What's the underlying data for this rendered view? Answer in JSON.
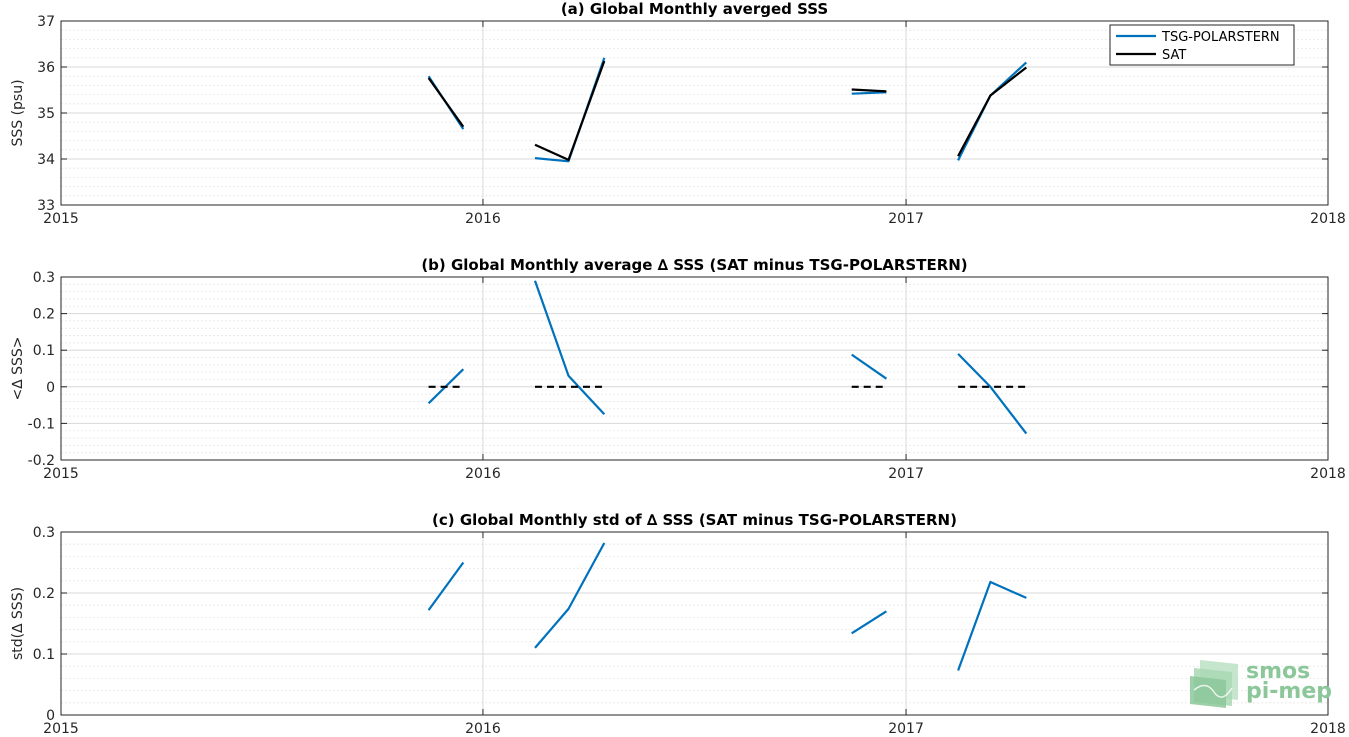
{
  "chart_data": [
    {
      "type": "line",
      "title": "(a) Global Monthly averged SSS",
      "xlabel": "",
      "ylabel": "SSS (psu)",
      "xlim": [
        "2015-01-01",
        "2018-01-01"
      ],
      "ylim": [
        33,
        37
      ],
      "xticks": [
        "2015",
        "2016",
        "2017",
        "2018"
      ],
      "yticks": [
        "33",
        "34",
        "35",
        "36",
        "37"
      ],
      "grid": true,
      "legend": "top-right",
      "series": [
        {
          "name": "TSG-POLARSTERN",
          "color": "#0072bd",
          "segments": [
            [
              [
                "2015-11-15",
                35.8
              ],
              [
                "2015-12-15",
                34.65
              ]
            ],
            [
              [
                "2016-02-15",
                34.02
              ],
              [
                "2016-03-15",
                33.95
              ],
              [
                "2016-04-15",
                36.2
              ]
            ],
            [
              [
                "2016-11-15",
                35.42
              ],
              [
                "2016-12-15",
                35.45
              ]
            ],
            [
              [
                "2017-02-15",
                33.97
              ],
              [
                "2017-03-15",
                35.38
              ],
              [
                "2017-04-15",
                36.1
              ]
            ]
          ]
        },
        {
          "name": "SAT",
          "color": "#000000",
          "segments": [
            [
              [
                "2015-11-15",
                35.76
              ],
              [
                "2015-12-15",
                34.7
              ]
            ],
            [
              [
                "2016-02-15",
                34.31
              ],
              [
                "2016-03-15",
                33.98
              ],
              [
                "2016-04-15",
                36.13
              ]
            ],
            [
              [
                "2016-11-15",
                35.51
              ],
              [
                "2016-12-15",
                35.47
              ]
            ],
            [
              [
                "2017-02-15",
                34.06
              ],
              [
                "2017-03-15",
                35.38
              ],
              [
                "2017-04-15",
                35.99
              ]
            ]
          ]
        }
      ]
    },
    {
      "type": "line",
      "title": "(b) Global Monthly average ∆ SSS (SAT minus TSG-POLARSTERN)",
      "xlabel": "",
      "ylabel": "<∆ SSS>",
      "xlim": [
        "2015-01-01",
        "2018-01-01"
      ],
      "ylim": [
        -0.2,
        0.3
      ],
      "xticks": [
        "2015",
        "2016",
        "2017",
        "2018"
      ],
      "yticks": [
        "-0.2",
        "-0.1",
        "0",
        "0.1",
        "0.2",
        "0.3"
      ],
      "grid": true,
      "series": [
        {
          "color": "#0072bd",
          "segments": [
            [
              [
                "2015-11-15",
                -0.045
              ],
              [
                "2015-12-15",
                0.048
              ]
            ],
            [
              [
                "2016-02-15",
                0.29
              ],
              [
                "2016-03-15",
                0.03
              ],
              [
                "2016-04-15",
                -0.075
              ]
            ],
            [
              [
                "2016-11-15",
                0.088
              ],
              [
                "2016-12-15",
                0.022
              ]
            ],
            [
              [
                "2017-02-15",
                0.09
              ],
              [
                "2017-03-15",
                0.0
              ],
              [
                "2017-04-15",
                -0.128
              ]
            ]
          ]
        },
        {
          "color": "#000000",
          "dashed": true,
          "segments": [
            [
              [
                "2015-11-15",
                0
              ],
              [
                "2015-12-15",
                0
              ]
            ],
            [
              [
                "2016-02-15",
                0
              ],
              [
                "2016-04-15",
                0
              ]
            ],
            [
              [
                "2016-11-15",
                0
              ],
              [
                "2016-12-15",
                0
              ]
            ],
            [
              [
                "2017-02-15",
                0
              ],
              [
                "2017-04-15",
                0
              ]
            ]
          ]
        }
      ]
    },
    {
      "type": "line",
      "title": "(c) Global Monthly std of ∆ SSS (SAT minus TSG-POLARSTERN)",
      "xlabel": "",
      "ylabel": "std(∆ SSS)",
      "xlim": [
        "2015-01-01",
        "2018-01-01"
      ],
      "ylim": [
        0,
        0.3
      ],
      "xticks": [
        "2015",
        "2016",
        "2017",
        "2018"
      ],
      "yticks": [
        "0",
        "0.1",
        "0.2",
        "0.3"
      ],
      "grid": true,
      "series": [
        {
          "color": "#0072bd",
          "segments": [
            [
              [
                "2015-11-15",
                0.172
              ],
              [
                "2015-12-15",
                0.25
              ]
            ],
            [
              [
                "2016-02-15",
                0.11
              ],
              [
                "2016-03-15",
                0.174
              ],
              [
                "2016-04-15",
                0.282
              ]
            ],
            [
              [
                "2016-11-15",
                0.134
              ],
              [
                "2016-12-15",
                0.17
              ]
            ],
            [
              [
                "2017-02-15",
                0.073
              ],
              [
                "2017-03-15",
                0.218
              ],
              [
                "2017-04-15",
                0.192
              ]
            ]
          ]
        }
      ]
    }
  ],
  "logo": {
    "line1": "smos",
    "line2": "pi-mep"
  }
}
